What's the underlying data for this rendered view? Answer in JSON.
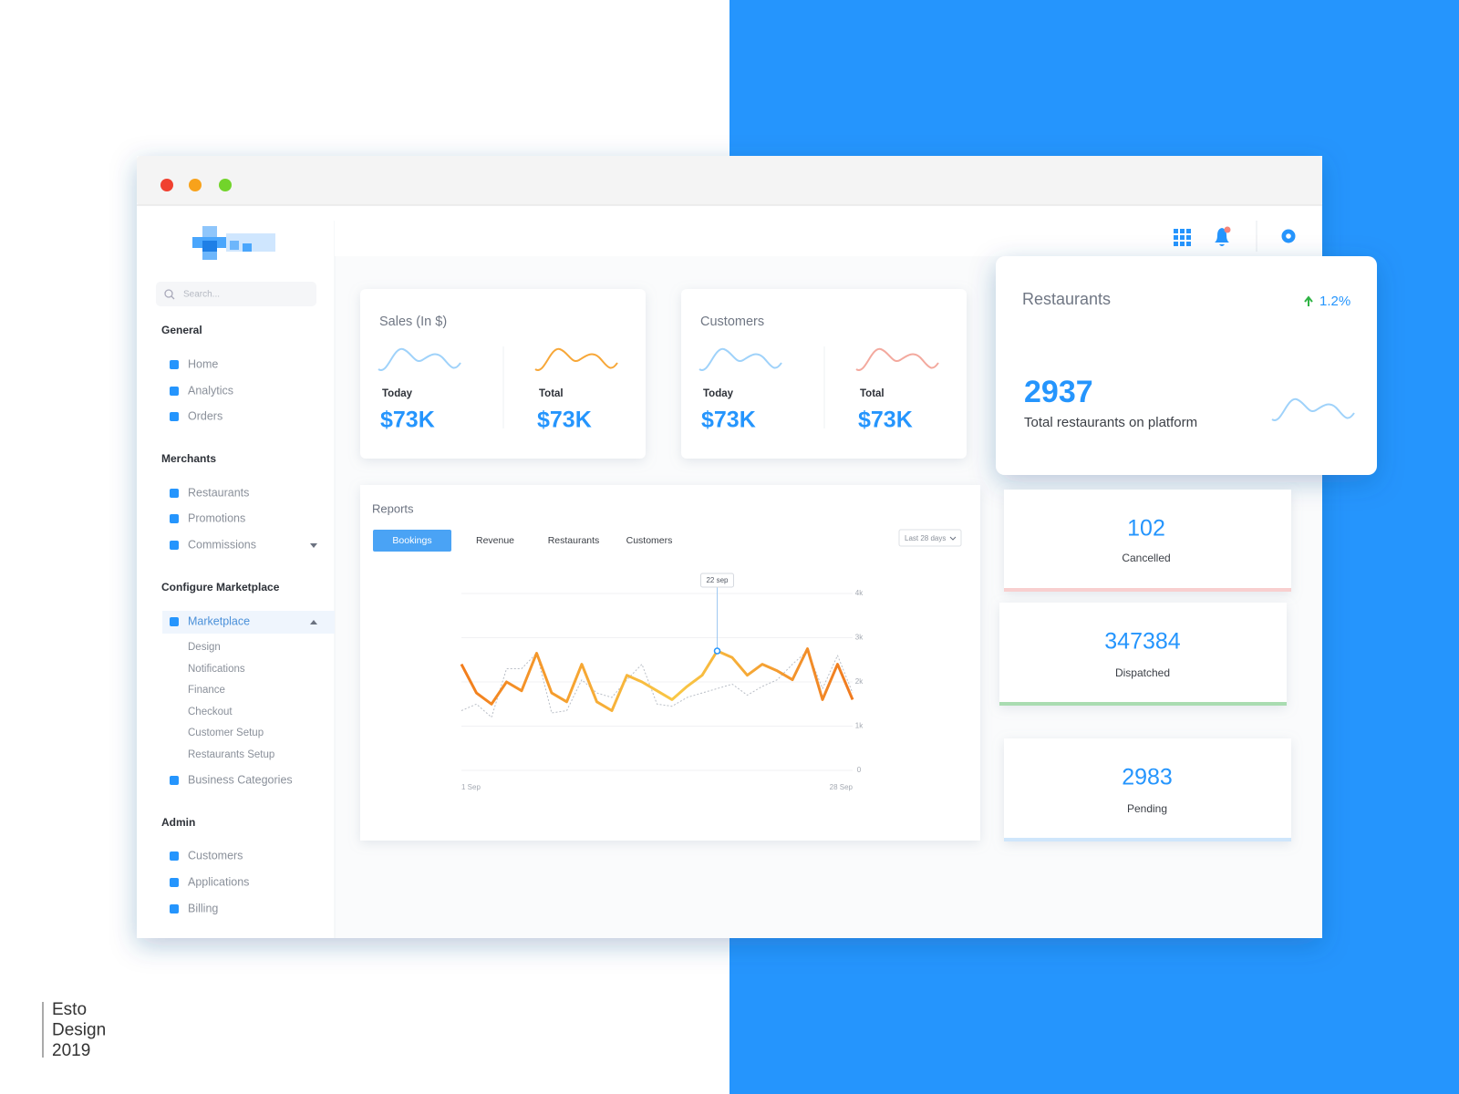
{
  "sidebar": {
    "search_placeholder": "Search...",
    "sections": [
      {
        "title": "General",
        "items": [
          "Home",
          "Analytics",
          "Orders"
        ]
      },
      {
        "title": "Merchants",
        "items": [
          "Restaurants",
          "Promotions",
          "Commissions"
        ]
      },
      {
        "title": "Configure Marketplace",
        "items": [
          "Marketplace",
          "Design",
          "Notifications",
          "Finance",
          "Checkout",
          "Customer Setup",
          "Restaurants Setup",
          "Business Categories"
        ]
      },
      {
        "title": "Admin",
        "items": [
          "Customers",
          "Applications",
          "Billing"
        ]
      }
    ]
  },
  "cards": [
    {
      "title": "Sales (In $)",
      "metrics": [
        {
          "label": "Today",
          "value": "$73K"
        },
        {
          "label": "Total",
          "value": "$73K"
        }
      ]
    },
    {
      "title": "Customers",
      "metrics": [
        {
          "label": "Today",
          "value": "$73K"
        },
        {
          "label": "Total",
          "value": "$73K"
        }
      ]
    }
  ],
  "restaurants": {
    "title": "Restaurants",
    "change": "1.2%",
    "value": "2937",
    "caption": "Total restaurants on platform"
  },
  "stats": [
    {
      "value": "102",
      "label": "Cancelled"
    },
    {
      "value": "347384",
      "label": "Dispatched"
    },
    {
      "value": "2983",
      "label": "Pending"
    }
  ],
  "reports": {
    "title": "Reports",
    "tabs": [
      "Bookings",
      "Revenue",
      "Restaurants",
      "Customers"
    ],
    "range": "Last 28 days",
    "chart": {
      "type": "line",
      "tooltip": "22 sep",
      "x_labels": [
        "1 Sep",
        "28 Sep"
      ],
      "ylim": [
        0,
        4000
      ],
      "yticks": [
        0,
        {
          "value": 1000,
          "label": "1k"
        },
        {
          "value": 2000,
          "label": "2k"
        },
        {
          "value": 3000,
          "label": "3k"
        },
        {
          "value": 4000,
          "label": "4k"
        }
      ],
      "series": [
        {
          "values": [
            2400,
            1750,
            1500,
            2000,
            1800,
            2650,
            1750,
            1550,
            2400,
            1550,
            1350,
            2150,
            2000,
            1800,
            1600,
            1900,
            2150,
            2700,
            2550,
            2150,
            2400,
            2250,
            2050,
            2750,
            1600,
            2400,
            1600
          ]
        },
        {
          "values": [
            1350,
            1500,
            1200,
            2300,
            2300,
            2650,
            1300,
            1350,
            2050,
            1750,
            1650,
            2050,
            2400,
            1500,
            1450,
            1650,
            1750,
            1850,
            1950,
            1700,
            1900,
            2050,
            2400,
            2700,
            1850,
            2600,
            1750
          ]
        }
      ]
    }
  },
  "footer": {
    "lines": [
      "Esto",
      "Design",
      "2019"
    ]
  }
}
